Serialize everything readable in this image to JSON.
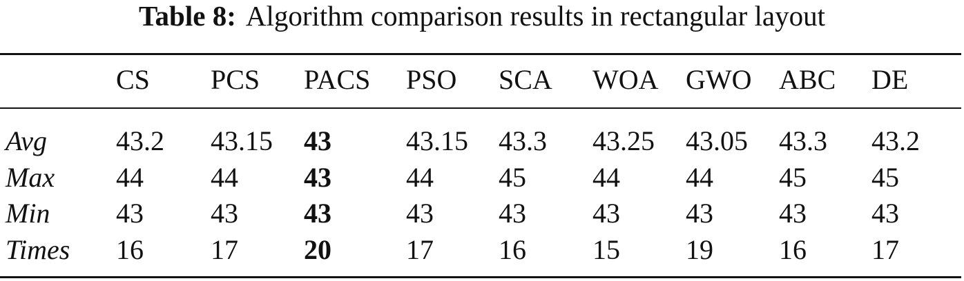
{
  "caption": {
    "label": "Table 8:",
    "text": "Algorithm comparison results in rectangular layout"
  },
  "table": {
    "columns": [
      "CS",
      "PCS",
      "PACS",
      "PSO",
      "SCA",
      "WOA",
      "GWO",
      "ABC",
      "DE"
    ],
    "rows": [
      {
        "label": "Avg",
        "values": [
          43.2,
          43.15,
          43,
          43.15,
          43.3,
          43.25,
          43.05,
          43.3,
          43.2
        ]
      },
      {
        "label": "Max",
        "values": [
          44,
          44,
          43,
          44,
          45,
          44,
          44,
          45,
          45
        ]
      },
      {
        "label": "Min",
        "values": [
          43,
          43,
          43,
          43,
          43,
          43,
          43,
          43,
          43
        ]
      },
      {
        "label": "Times",
        "values": [
          16,
          17,
          20,
          17,
          16,
          15,
          19,
          16,
          17
        ]
      }
    ]
  }
}
